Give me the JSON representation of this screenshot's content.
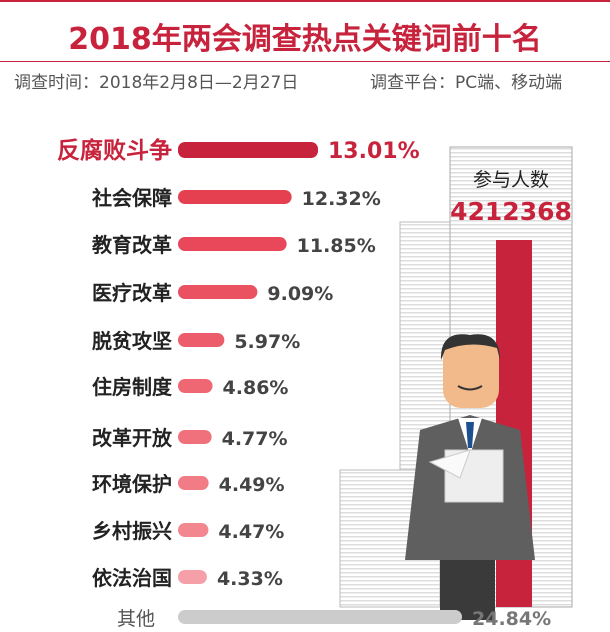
{
  "title": "2018年两会调查热点关键词前十名",
  "survey_time": "调查时间：2018年2月8日—2月27日",
  "survey_platform": "调查平台：PC端、移动端",
  "participants": {
    "label": "参与人数",
    "value": "4212368"
  },
  "colors": {
    "accent": "#c8233c",
    "bar": "#e8485a",
    "other": "#cccccc"
  },
  "chart_data": {
    "type": "bar",
    "orientation": "horizontal",
    "categories": [
      "反腐败斗争",
      "社会保障",
      "教育改革",
      "医疗改革",
      "脱贫攻坚",
      "住房制度",
      "改革开放",
      "环境保护",
      "乡村振兴",
      "依法治国",
      "其他"
    ],
    "values": [
      13.01,
      12.32,
      11.85,
      9.09,
      5.97,
      4.86,
      4.77,
      4.49,
      4.47,
      4.33,
      24.84
    ],
    "labels": [
      "13.01%",
      "12.32%",
      "11.85%",
      "9.09%",
      "5.97%",
      "4.86%",
      "4.77%",
      "4.49%",
      "4.47%",
      "4.33%",
      "24.84%"
    ],
    "unit": "%"
  }
}
